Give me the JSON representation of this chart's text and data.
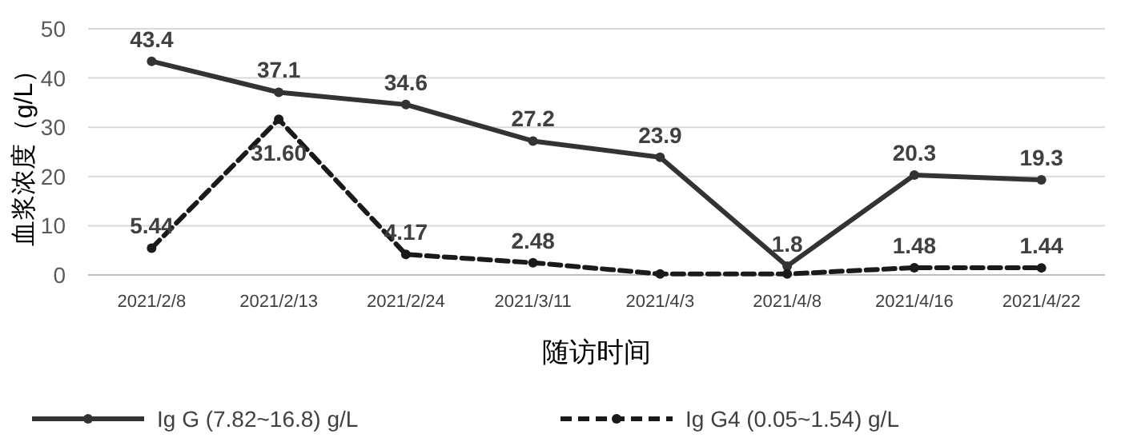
{
  "chart_data": {
    "type": "line",
    "ylabel": "血浆浓度（g/L）",
    "xlabel": "随访时间",
    "categories": [
      "2021/2/8",
      "2021/2/13",
      "2021/2/24",
      "2021/3/11",
      "2021/4/3",
      "2021/4/8",
      "2021/4/16",
      "2021/4/22"
    ],
    "ylim": [
      0,
      50
    ],
    "yticks": [
      0,
      10,
      20,
      30,
      40,
      50
    ],
    "grid": "y",
    "legend": "bottom",
    "marker": "circle",
    "series": [
      {
        "name": "Ig G (7.82~16.8) g/L",
        "color": "#333333",
        "line_style": "solid",
        "values": [
          43.4,
          37.1,
          34.6,
          27.2,
          23.9,
          1.8,
          20.3,
          19.3
        ],
        "value_labels": [
          "43.4",
          "37.1",
          "34.6",
          "27.2",
          "23.9",
          "1.8",
          "20.3",
          "19.3"
        ]
      },
      {
        "name": "Ig G4 (0.05~1.54) g/L",
        "color": "#1a1a1a",
        "line_style": "dashed",
        "values": [
          5.44,
          31.6,
          4.17,
          2.48,
          0.2,
          0.2,
          1.48,
          1.44
        ],
        "value_labels": [
          "5.44",
          "31.60",
          "4.17",
          "2.48",
          null,
          null,
          "1.48",
          "1.44"
        ]
      }
    ]
  }
}
